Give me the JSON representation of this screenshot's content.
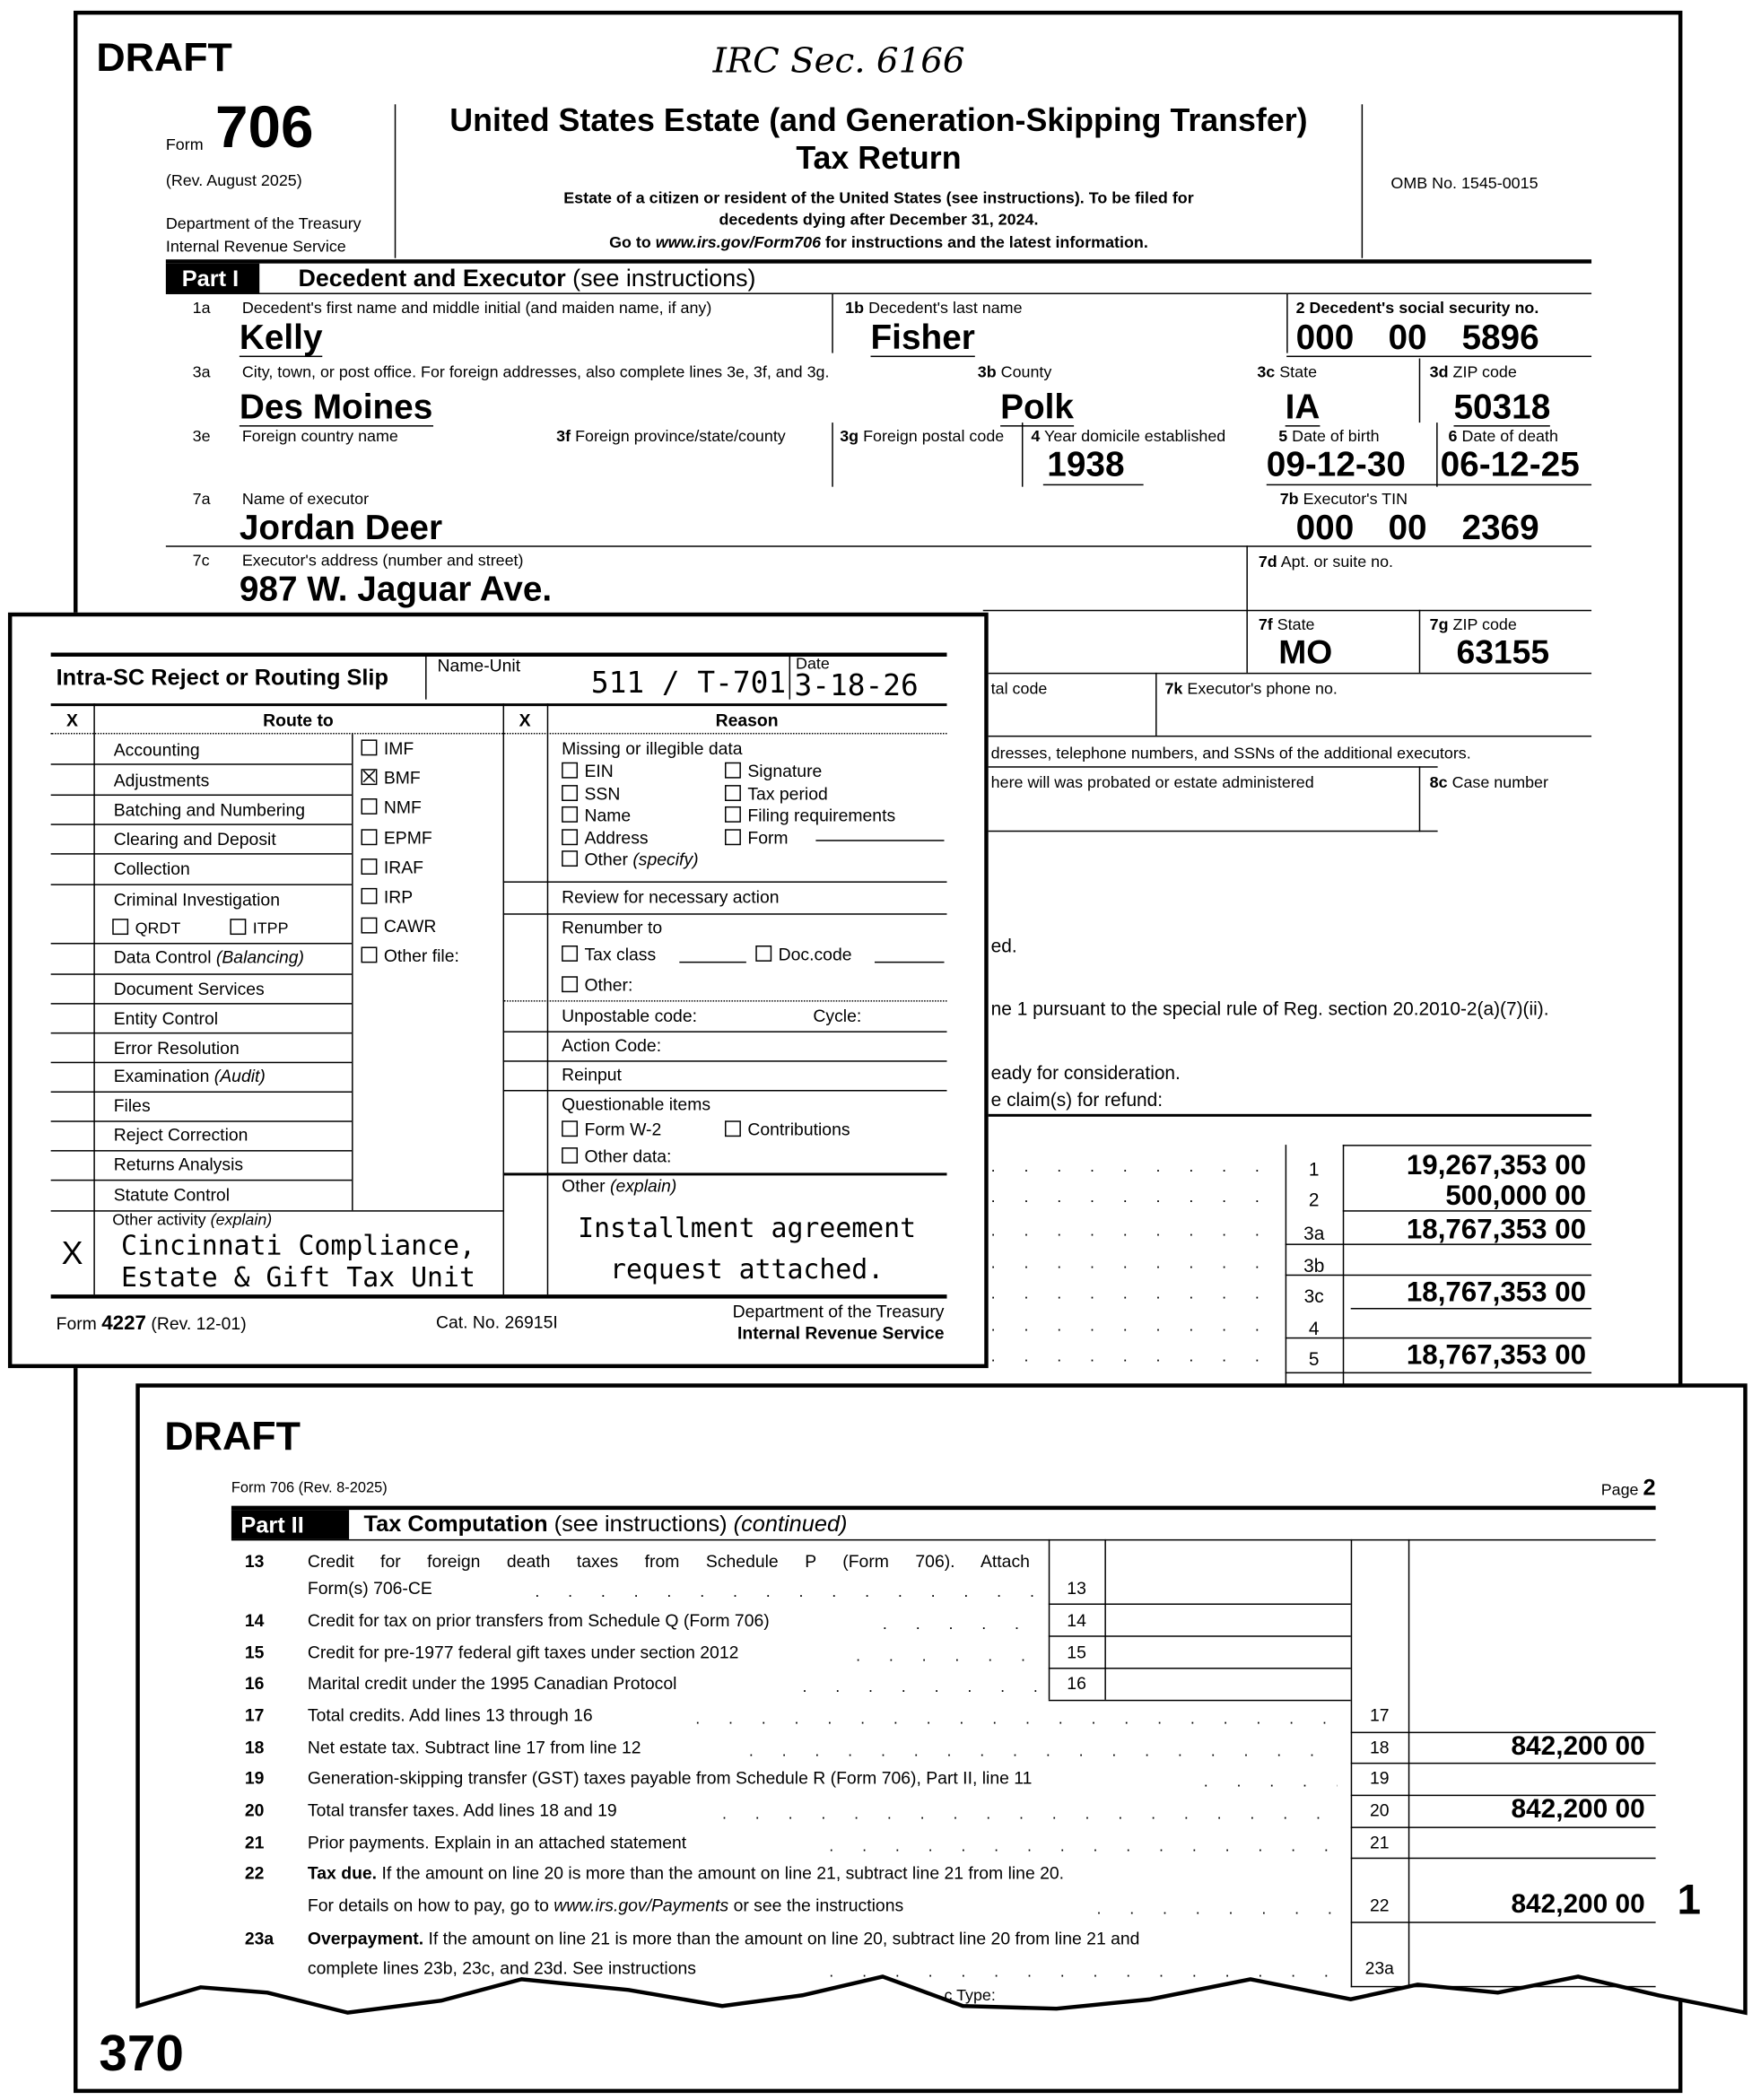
{
  "page1": {
    "watermark": "DRAFT",
    "handwritten_note": "IRC Sec. 6166",
    "header": {
      "form_word": "Form",
      "form_number": "706",
      "revision": "(Rev. August 2025)",
      "department": "Department of the Treasury",
      "agency": "Internal Revenue Service",
      "title_line1": "United States Estate (and Generation-Skipping Transfer)",
      "title_line2": "Tax Return",
      "sub1": "Estate of a citizen or resident of the United States (see instructions). To be filed for",
      "sub2": "decedents dying after December 31, 2024.",
      "sub3_pre": "Go to ",
      "sub3_link": "www.irs.gov/Form706",
      "sub3_post": " for instructions and the latest information.",
      "omb": "OMB No. 1545-0015"
    },
    "part1": {
      "label": "Part I",
      "title": "Decedent and Executor",
      "title_note": "(see instructions)",
      "fields": {
        "f1a": {
          "num": "1a",
          "label": "Decedent's first name and middle initial (and maiden name, if any)",
          "value": "Kelly"
        },
        "f1b": {
          "num": "1b",
          "label": "Decedent's last name",
          "value": "Fisher"
        },
        "f2": {
          "label": "2 Decedent's social security no.",
          "v1": "000",
          "v2": "00",
          "v3": "5896"
        },
        "f3a": {
          "num": "3a",
          "label": "City, town, or post office. For foreign addresses, also complete lines 3e, 3f, and 3g.",
          "value": "Des Moines"
        },
        "f3b": {
          "num": "3b",
          "label": "County",
          "value": "Polk"
        },
        "f3c": {
          "num": "3c",
          "label": "State",
          "value": "IA"
        },
        "f3d": {
          "num": "3d",
          "label": "ZIP code",
          "value": "50318"
        },
        "f3e": {
          "num": "3e",
          "label": "Foreign country name"
        },
        "f3f": {
          "num": "3f",
          "label": "Foreign province/state/county"
        },
        "f3g": {
          "num": "3g",
          "label": "Foreign postal code"
        },
        "f4": {
          "num": "4",
          "label": "Year domicile established",
          "value": "1938"
        },
        "f5": {
          "num": "5",
          "label": "Date of birth",
          "value": "09-12-30"
        },
        "f6": {
          "num": "6",
          "label": "Date of death",
          "value": "06-12-25"
        },
        "f7a": {
          "num": "7a",
          "label": "Name of executor",
          "value": "Jordan Deer"
        },
        "f7b": {
          "num": "7b",
          "label": "Executor's TIN",
          "v1": "000",
          "v2": "00",
          "v3": "2369"
        },
        "f7c": {
          "num": "7c",
          "label": "Executor's address (number and street)",
          "value": "987 W. Jaguar Ave."
        },
        "f7d": {
          "num": "7d",
          "label": "Apt. or suite no."
        },
        "f7f": {
          "num": "7f",
          "label": "State",
          "value": "MO"
        },
        "f7g": {
          "num": "7g",
          "label": "ZIP code",
          "value": "63155"
        },
        "f7j_partial": "tal code",
        "f7k": {
          "num": "7k",
          "label": "Executor's phone no."
        },
        "addl_exec_partial": "dresses, telephone numbers, and SSNs of the additional executors.",
        "f8b_partial": "here will was probated or estate administered",
        "f8c": {
          "num": "8c",
          "label": "Case number"
        }
      },
      "text_partials": [
        "ed.",
        "ne 1 pursuant to the special rule of Reg. section 20.2010-2(a)(7)(ii).",
        "eady for consideration.",
        "e claim(s) for refund:"
      ]
    },
    "computation_lines": [
      {
        "line": "1",
        "amount": "19,267,353 00"
      },
      {
        "line": "2",
        "amount": "500,000 00"
      },
      {
        "line": "3a",
        "amount": "18,767,353 00"
      },
      {
        "line": "3b",
        "amount": ""
      },
      {
        "line": "3c",
        "amount": "18,767,353 00"
      },
      {
        "line": "4",
        "amount": ""
      },
      {
        "line": "5",
        "amount": "18,767,353 00"
      }
    ],
    "page_number": "370"
  },
  "routing_slip": {
    "title": "Intra-SC Reject or Routing Slip",
    "name_unit_label": "Name-Unit",
    "name_unit_value": "511 / T-701",
    "date_label": "Date",
    "date_value": "3-18-26",
    "col_x": "X",
    "route_header": "Route to",
    "reason_header": "Reason",
    "route_items": [
      "Accounting",
      "Adjustments",
      "Batching and Numbering",
      "Clearing and Deposit",
      "Collection",
      "Criminal Investigation",
      "Data Control",
      "Document Services",
      "Entity Control",
      "Error Resolution",
      "Examination",
      "Files",
      "Reject Correction",
      "Returns Analysis",
      "Statute Control"
    ],
    "data_control_note": "(Balancing)",
    "examination_note": "(Audit)",
    "ci_sub": [
      {
        "label": "QRDT",
        "checked": false
      },
      {
        "label": "ITPP",
        "checked": false
      }
    ],
    "file_types": [
      {
        "label": "IMF",
        "checked": false
      },
      {
        "label": "BMF",
        "checked": true
      },
      {
        "label": "NMF",
        "checked": false
      },
      {
        "label": "EPMF",
        "checked": false
      },
      {
        "label": "IRAF",
        "checked": false
      },
      {
        "label": "IRP",
        "checked": false
      },
      {
        "label": "CAWR",
        "checked": false
      },
      {
        "label": "Other file:",
        "checked": false
      }
    ],
    "other_activity_label": "Other activity",
    "explain_note": "(explain)",
    "other_activity_mark": "X",
    "other_activity_value1": "Cincinnati Compliance,",
    "other_activity_value2": "Estate & Gift Tax Unit",
    "reasons": {
      "missing_header": "Missing or illegible data",
      "missing_left": [
        "EIN",
        "SSN",
        "Name",
        "Address",
        "Other"
      ],
      "specify_note": "(specify)",
      "missing_right": [
        "Signature",
        "Tax period",
        "Filing requirements",
        "Form"
      ],
      "review": "Review for necessary action",
      "renumber": "Renumber to",
      "tax_class": "Tax class",
      "doc_code": "Doc.code",
      "renumber_other": "Other:",
      "unpostable": "Unpostable code:",
      "cycle": "Cycle:",
      "action_code": "Action Code:",
      "reinput": "Reinput",
      "questionable": "Questionable items",
      "form_w2": "Form W-2",
      "contributions": "Contributions",
      "other_data": "Other data:",
      "other_explain": "Other",
      "other_value1": "Installment agreement",
      "other_value2": "request attached."
    },
    "footer": {
      "form_pre": "Form ",
      "form_no": "4227",
      "rev": " (Rev. 12-01)",
      "cat": "Cat. No. 26915I",
      "dept": "Department of the Treasury",
      "irs": "Internal Revenue Service"
    }
  },
  "page2": {
    "watermark": "DRAFT",
    "form_ref": "Form 706 (Rev. 8-2025)",
    "page_word": "Page",
    "page_no": "2",
    "part_label": "Part II",
    "part_title": "Tax Computation",
    "part_note": "(see instructions)",
    "part_cont": "(continued)",
    "lines": [
      {
        "num": "13",
        "text": "Credit for foreign death taxes from Schedule P (Form 706). Attach",
        "text2": "Form(s) 706-CE",
        "box": "13",
        "amount": ""
      },
      {
        "num": "14",
        "text": "Credit for tax on prior transfers from Schedule Q (Form 706)",
        "box": "14",
        "amount": ""
      },
      {
        "num": "15",
        "text": "Credit for pre-1977 federal gift taxes under section 2012",
        "box": "15",
        "amount": ""
      },
      {
        "num": "16",
        "text": "Marital credit under the 1995 Canadian Protocol",
        "box": "16",
        "amount": ""
      },
      {
        "num": "17",
        "text": "Total credits. Add lines 13 through 16",
        "box": "17",
        "amount": ""
      },
      {
        "num": "18",
        "text": "Net estate tax. Subtract line 17 from line 12",
        "box": "18",
        "amount": "842,200 00"
      },
      {
        "num": "19",
        "text": "Generation-skipping transfer (GST) taxes payable from Schedule R (Form 706), Part II, line 11",
        "box": "19",
        "amount": ""
      },
      {
        "num": "20",
        "text": "Total transfer taxes. Add lines 18 and 19",
        "box": "20",
        "amount": "842,200 00"
      },
      {
        "num": "21",
        "text": "Prior payments. Explain in an attached statement",
        "box": "21",
        "amount": ""
      },
      {
        "num": "22",
        "bold": "Tax due.",
        "text": " If the amount on line 20 is more than the amount on line 21, subtract line 21 from line 20.",
        "text2_pre": "For details on how to pay, go to ",
        "text2_link": "www.irs.gov/Payments",
        "text2_post": " or see the instructions",
        "box": "22",
        "amount": "842,200 00"
      },
      {
        "num": "23a",
        "bold": "Overpayment.",
        "text": " If the amount on line 21 is more than the amount on line 20, subtract line 20 from line 21 and",
        "text2": "complete lines 23b, 23c, and 23d. See instructions",
        "box": "23a",
        "amount": ""
      }
    ],
    "margin_mark": "1",
    "torn_partial": "c Type:"
  }
}
